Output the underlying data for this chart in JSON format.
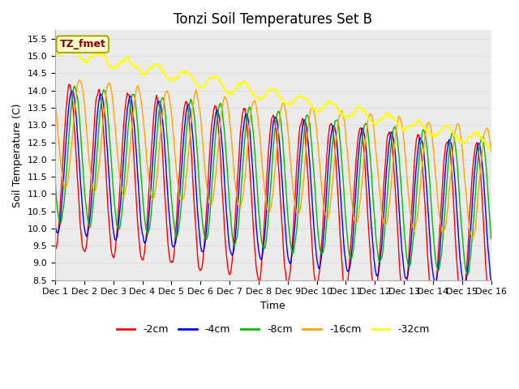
{
  "title": "Tonzi Soil Temperatures Set B",
  "xlabel": "Time",
  "ylabel": "Soil Temperature (C)",
  "ylim": [
    8.5,
    15.75
  ],
  "xlim": [
    0,
    15
  ],
  "xtick_labels": [
    "Dec 1",
    "Dec 2",
    "Dec 3",
    "Dec 4",
    "Dec 5",
    "Dec 6",
    "Dec 7",
    "Dec 8",
    "Dec 9",
    "Dec 10",
    "Dec 11",
    "Dec 12",
    "Dec 13",
    "Dec 14",
    "Dec 15",
    "Dec 16"
  ],
  "series": {
    "-2cm": {
      "color": "#FF0000",
      "linewidth": 1.0
    },
    "-4cm": {
      "color": "#0000FF",
      "linewidth": 1.0
    },
    "-8cm": {
      "color": "#00BB00",
      "linewidth": 1.0
    },
    "-16cm": {
      "color": "#FFA500",
      "linewidth": 1.0
    },
    "-32cm": {
      "color": "#FFFF00",
      "linewidth": 1.5
    }
  },
  "legend_label": "TZ_fmet",
  "legend_bg": "#FFFFCC",
  "legend_edge": "#AAAA00",
  "legend_text_color": "#880000",
  "grid_color": "#DDDDDD",
  "plot_bg": "#EBEBEB",
  "fig_bg": "#FFFFFF",
  "title_fontsize": 12,
  "axis_fontsize": 9,
  "tick_fontsize": 8
}
